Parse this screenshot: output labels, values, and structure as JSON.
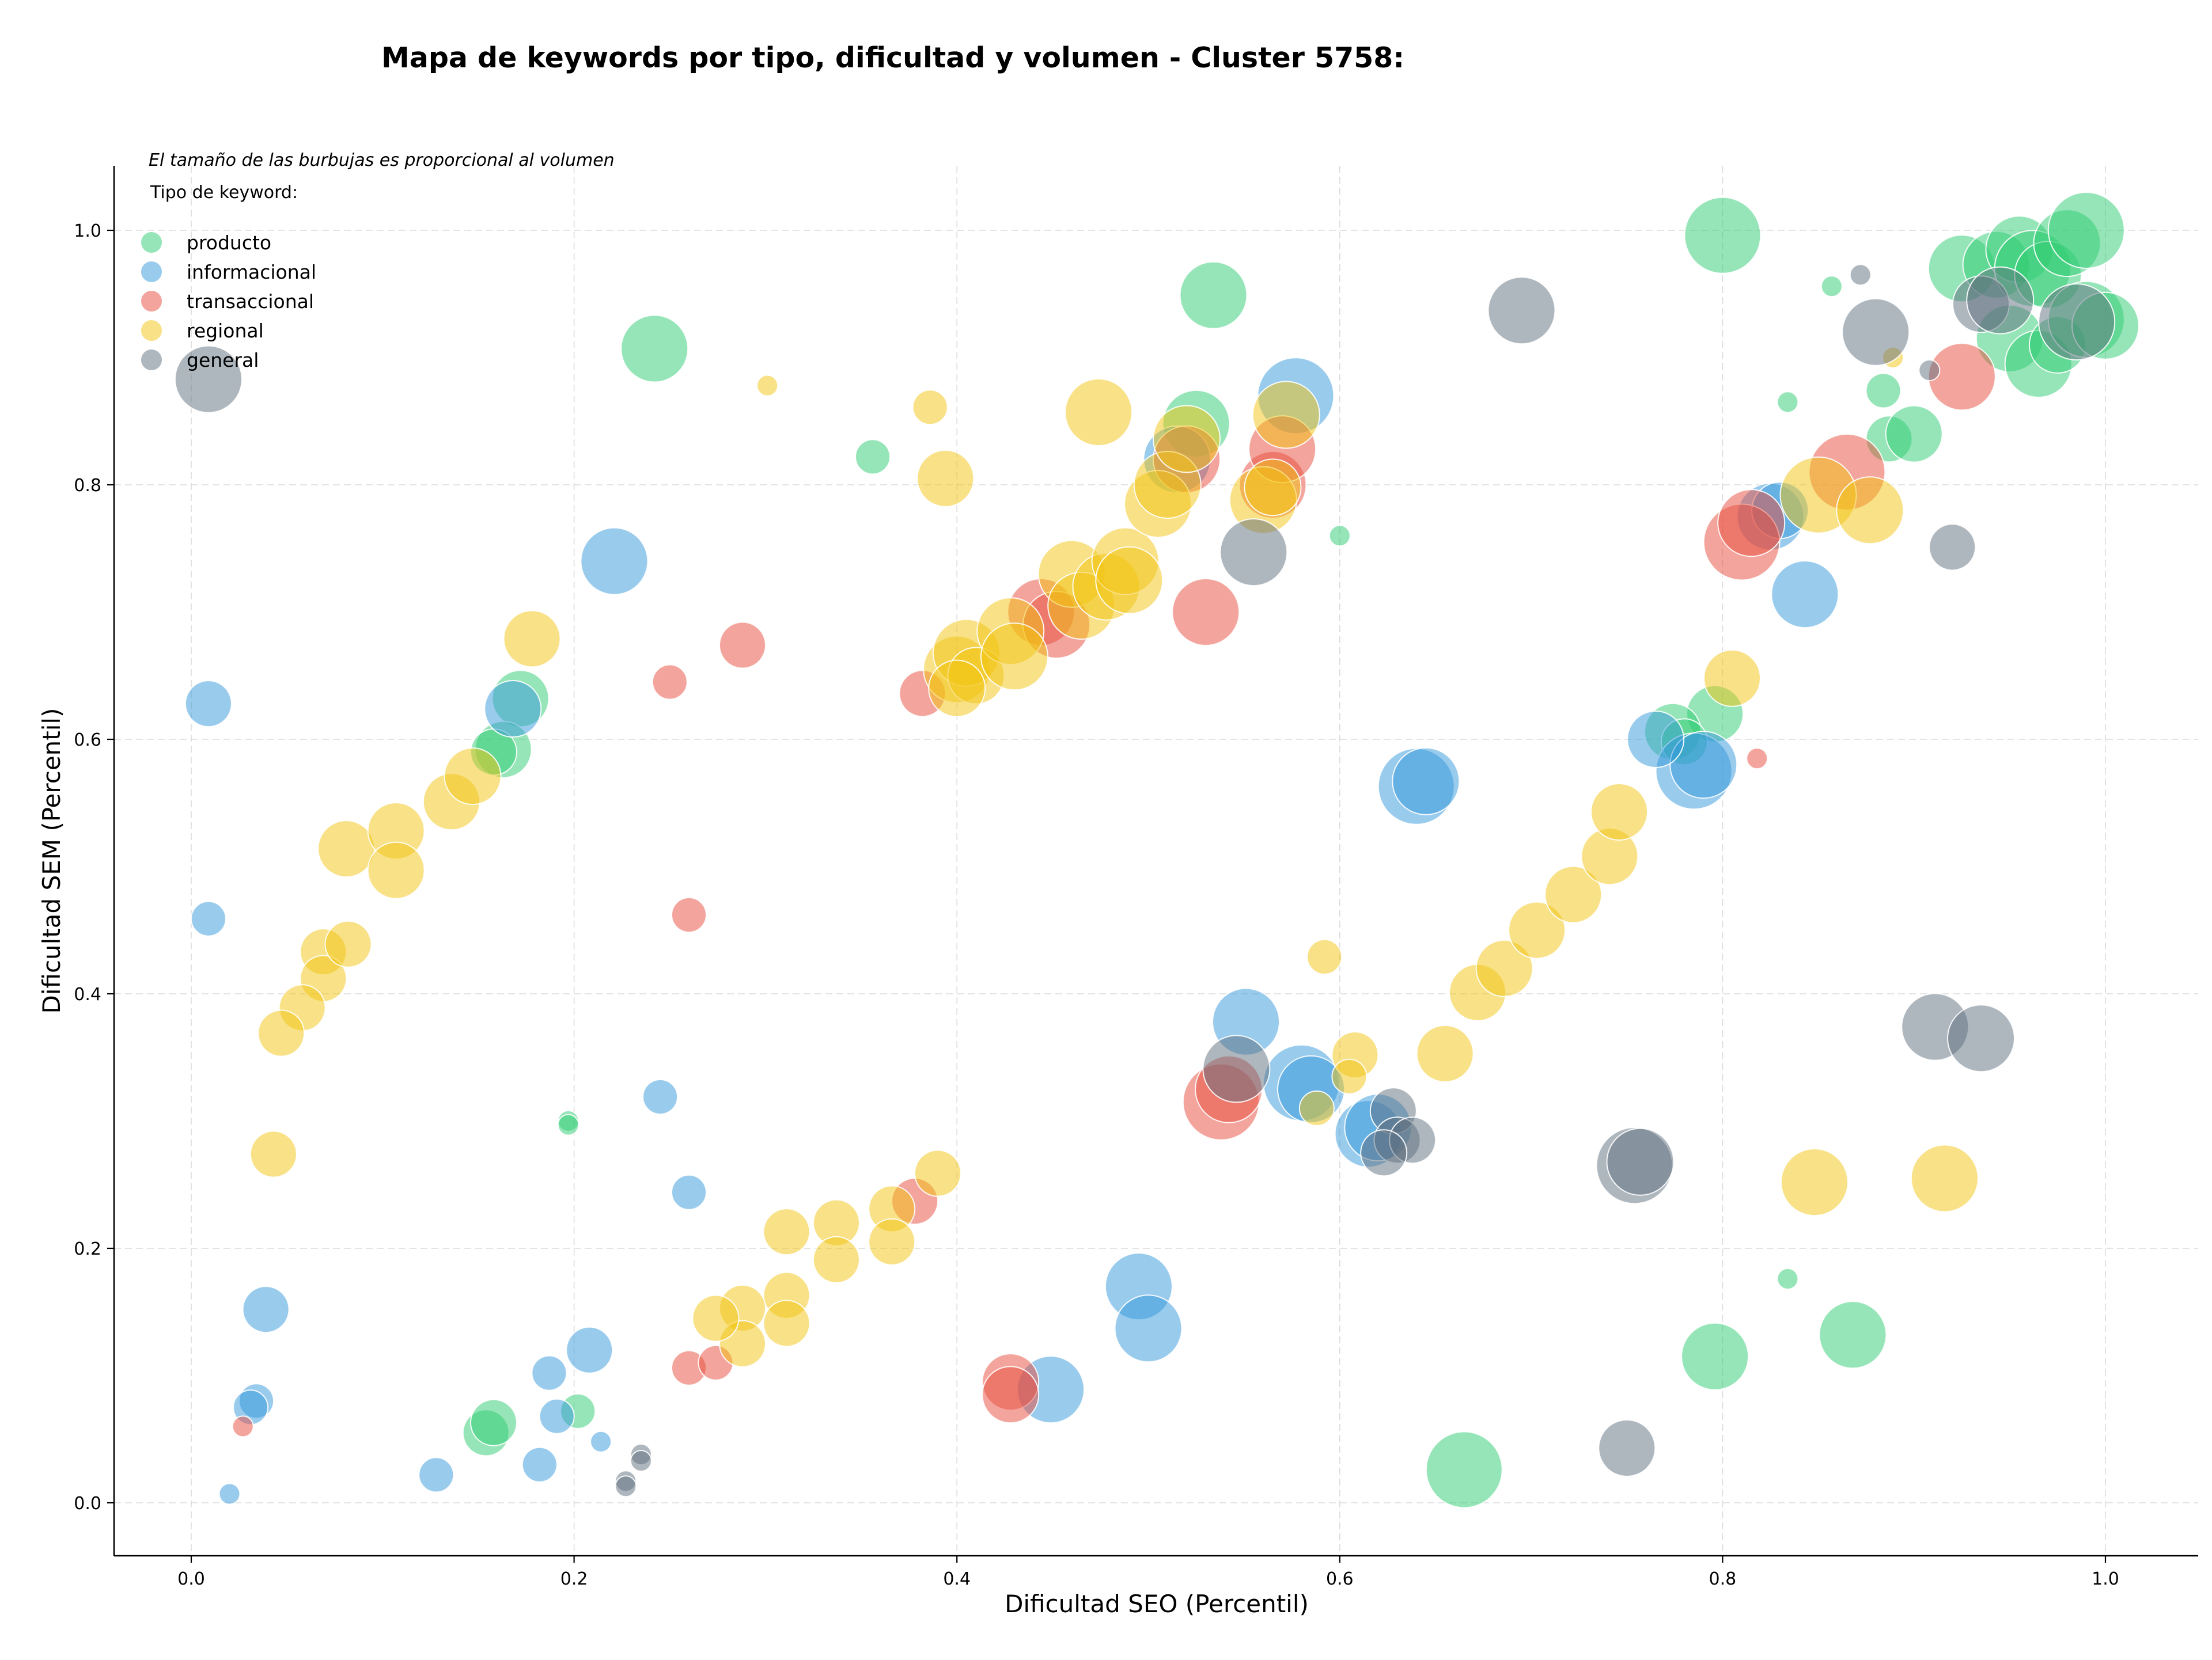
{
  "chart_data": {
    "type": "scatter",
    "title": "Mapa de keywords por tipo, dificultad y volumen - Cluster 5758:",
    "xlabel": "Dificultad SEO (Percentil)",
    "ylabel": "Dificultad SEM (Percentil)",
    "note": "El tamaño de las burbujas es proporcional al volumen",
    "legend_title": "Tipo de keyword:",
    "legend_position": "top-left",
    "grid": true,
    "xlim": [
      -0.04,
      1.05
    ],
    "ylim": [
      -0.042,
      1.05
    ],
    "x_ticks": [
      "0.0",
      "0.2",
      "0.4",
      "0.6",
      "0.8",
      "1.0"
    ],
    "y_ticks": [
      "0.0",
      "0.2",
      "0.4",
      "0.6",
      "0.8",
      "1.0"
    ],
    "series": [
      {
        "name": "producto",
        "color": "#2ecc71",
        "points": [
          [
            0.242,
            0.907,
            5
          ],
          [
            0.356,
            0.822,
            2
          ],
          [
            0.534,
            0.949,
            5
          ],
          [
            0.525,
            0.848,
            5
          ],
          [
            0.6,
            0.76,
            1
          ],
          [
            0.8,
            0.996,
            6
          ],
          [
            0.834,
            0.865,
            1
          ],
          [
            0.857,
            0.956,
            1
          ],
          [
            0.884,
            0.874,
            2
          ],
          [
            0.887,
            0.836,
            3
          ],
          [
            0.9,
            0.84,
            4
          ],
          [
            0.925,
            0.97,
            5
          ],
          [
            0.943,
            0.973,
            5
          ],
          [
            0.955,
            0.985,
            5
          ],
          [
            0.962,
            0.97,
            6
          ],
          [
            0.97,
            0.965,
            5
          ],
          [
            0.98,
            0.99,
            5
          ],
          [
            0.99,
            1.0,
            6
          ],
          [
            0.95,
            0.915,
            5
          ],
          [
            0.965,
            0.895,
            5
          ],
          [
            0.975,
            0.91,
            4
          ],
          [
            0.99,
            0.93,
            6
          ],
          [
            1.0,
            0.925,
            5
          ],
          [
            0.172,
            0.632,
            4
          ],
          [
            0.163,
            0.592,
            4
          ],
          [
            0.158,
            0.59,
            3
          ],
          [
            0.197,
            0.3,
            1
          ],
          [
            0.197,
            0.297,
            1
          ],
          [
            0.202,
            0.072,
            2
          ],
          [
            0.154,
            0.055,
            3
          ],
          [
            0.158,
            0.063,
            3
          ],
          [
            0.665,
            0.026,
            6
          ],
          [
            0.796,
            0.115,
            5
          ],
          [
            0.868,
            0.132,
            5
          ],
          [
            0.834,
            0.176,
            1
          ],
          [
            0.796,
            0.62,
            4
          ],
          [
            0.774,
            0.606,
            4
          ],
          [
            0.78,
            0.598,
            3
          ]
        ]
      },
      {
        "name": "informacional",
        "color": "#3498db",
        "points": [
          [
            0.009,
            0.628,
            3
          ],
          [
            0.009,
            0.459,
            2
          ],
          [
            0.221,
            0.74,
            5
          ],
          [
            0.168,
            0.624,
            4
          ],
          [
            0.577,
            0.87,
            6
          ],
          [
            0.515,
            0.82,
            5
          ],
          [
            0.64,
            0.563,
            6
          ],
          [
            0.645,
            0.567,
            5
          ],
          [
            0.551,
            0.378,
            5
          ],
          [
            0.58,
            0.33,
            6
          ],
          [
            0.585,
            0.325,
            5
          ],
          [
            0.615,
            0.29,
            5
          ],
          [
            0.62,
            0.295,
            5
          ],
          [
            0.825,
            0.775,
            5
          ],
          [
            0.83,
            0.78,
            4
          ],
          [
            0.843,
            0.714,
            5
          ],
          [
            0.785,
            0.575,
            6
          ],
          [
            0.79,
            0.58,
            5
          ],
          [
            0.765,
            0.6,
            4
          ],
          [
            0.245,
            0.319,
            2
          ],
          [
            0.26,
            0.244,
            2
          ],
          [
            0.039,
            0.152,
            3
          ],
          [
            0.034,
            0.08,
            2
          ],
          [
            0.031,
            0.075,
            2
          ],
          [
            0.02,
            0.007,
            1
          ],
          [
            0.128,
            0.022,
            2
          ],
          [
            0.182,
            0.03,
            2
          ],
          [
            0.187,
            0.102,
            2
          ],
          [
            0.191,
            0.068,
            2
          ],
          [
            0.208,
            0.12,
            3
          ],
          [
            0.214,
            0.048,
            1
          ],
          [
            0.495,
            0.17,
            5
          ],
          [
            0.5,
            0.137,
            5
          ],
          [
            0.449,
            0.089,
            5
          ]
        ]
      },
      {
        "name": "transaccional",
        "color": "#e74c3c",
        "points": [
          [
            0.25,
            0.645,
            2
          ],
          [
            0.288,
            0.674,
            3
          ],
          [
            0.382,
            0.636,
            3
          ],
          [
            0.444,
            0.7,
            5
          ],
          [
            0.452,
            0.69,
            5
          ],
          [
            0.53,
            0.7,
            5
          ],
          [
            0.52,
            0.82,
            5
          ],
          [
            0.565,
            0.8,
            5
          ],
          [
            0.57,
            0.828,
            5
          ],
          [
            0.81,
            0.755,
            6
          ],
          [
            0.815,
            0.77,
            5
          ],
          [
            0.865,
            0.81,
            6
          ],
          [
            0.925,
            0.885,
            5
          ],
          [
            0.818,
            0.585,
            1
          ],
          [
            0.26,
            0.462,
            2
          ],
          [
            0.538,
            0.315,
            6
          ],
          [
            0.542,
            0.325,
            5
          ],
          [
            0.378,
            0.237,
            3
          ],
          [
            0.027,
            0.06,
            1
          ],
          [
            0.26,
            0.106,
            2
          ],
          [
            0.274,
            0.11,
            2
          ],
          [
            0.428,
            0.095,
            4
          ],
          [
            0.428,
            0.085,
            4
          ]
        ]
      },
      {
        "name": "regional",
        "color": "#f1c40f",
        "points": [
          [
            0.301,
            0.878,
            1
          ],
          [
            0.386,
            0.861,
            2
          ],
          [
            0.394,
            0.805,
            4
          ],
          [
            0.474,
            0.857,
            5
          ],
          [
            0.178,
            0.679,
            4
          ],
          [
            0.081,
            0.514,
            4
          ],
          [
            0.107,
            0.528,
            4
          ],
          [
            0.107,
            0.497,
            4
          ],
          [
            0.136,
            0.551,
            4
          ],
          [
            0.147,
            0.571,
            4
          ],
          [
            0.069,
            0.433,
            3
          ],
          [
            0.069,
            0.412,
            3
          ],
          [
            0.082,
            0.439,
            3
          ],
          [
            0.058,
            0.389,
            3
          ],
          [
            0.047,
            0.369,
            3
          ],
          [
            0.043,
            0.274,
            3
          ],
          [
            0.4,
            0.655,
            5
          ],
          [
            0.405,
            0.668,
            5
          ],
          [
            0.41,
            0.65,
            4
          ],
          [
            0.4,
            0.64,
            4
          ],
          [
            0.428,
            0.685,
            5
          ],
          [
            0.43,
            0.665,
            5
          ],
          [
            0.46,
            0.73,
            5
          ],
          [
            0.465,
            0.705,
            5
          ],
          [
            0.478,
            0.72,
            5
          ],
          [
            0.488,
            0.74,
            5
          ],
          [
            0.49,
            0.725,
            5
          ],
          [
            0.505,
            0.785,
            5
          ],
          [
            0.51,
            0.8,
            5
          ],
          [
            0.52,
            0.836,
            5
          ],
          [
            0.56,
            0.788,
            5
          ],
          [
            0.565,
            0.798,
            4
          ],
          [
            0.572,
            0.855,
            5
          ],
          [
            0.592,
            0.429,
            2
          ],
          [
            0.608,
            0.352,
            3
          ],
          [
            0.605,
            0.335,
            2
          ],
          [
            0.588,
            0.31,
            2
          ],
          [
            0.655,
            0.353,
            4
          ],
          [
            0.672,
            0.401,
            4
          ],
          [
            0.686,
            0.42,
            4
          ],
          [
            0.703,
            0.45,
            4
          ],
          [
            0.722,
            0.478,
            4
          ],
          [
            0.741,
            0.508,
            4
          ],
          [
            0.746,
            0.543,
            4
          ],
          [
            0.805,
            0.648,
            4
          ],
          [
            0.85,
            0.792,
            6
          ],
          [
            0.877,
            0.78,
            5
          ],
          [
            0.848,
            0.252,
            5
          ],
          [
            0.916,
            0.255,
            5
          ],
          [
            0.889,
            0.9,
            1
          ],
          [
            0.39,
            0.259,
            3
          ],
          [
            0.366,
            0.231,
            3
          ],
          [
            0.366,
            0.205,
            3
          ],
          [
            0.337,
            0.22,
            3
          ],
          [
            0.337,
            0.191,
            3
          ],
          [
            0.311,
            0.213,
            3
          ],
          [
            0.311,
            0.163,
            3
          ],
          [
            0.311,
            0.141,
            3
          ],
          [
            0.288,
            0.153,
            3
          ],
          [
            0.288,
            0.125,
            3
          ],
          [
            0.274,
            0.145,
            3
          ]
        ]
      },
      {
        "name": "general",
        "color": "#5d6d7e",
        "points": [
          [
            0.009,
            0.883,
            5
          ],
          [
            0.695,
            0.937,
            5
          ],
          [
            0.555,
            0.747,
            5
          ],
          [
            0.872,
            0.965,
            1
          ],
          [
            0.88,
            0.92,
            5
          ],
          [
            0.908,
            0.89,
            1
          ],
          [
            0.935,
            0.942,
            4
          ],
          [
            0.945,
            0.945,
            5
          ],
          [
            0.985,
            0.928,
            6
          ],
          [
            0.92,
            0.751,
            3
          ],
          [
            0.546,
            0.341,
            5
          ],
          [
            0.628,
            0.308,
            3
          ],
          [
            0.63,
            0.285,
            3
          ],
          [
            0.638,
            0.285,
            3
          ],
          [
            0.623,
            0.275,
            3
          ],
          [
            0.754,
            0.265,
            6
          ],
          [
            0.757,
            0.268,
            5
          ],
          [
            0.911,
            0.374,
            5
          ],
          [
            0.935,
            0.365,
            5
          ],
          [
            0.75,
            0.043,
            4
          ],
          [
            0.235,
            0.038,
            1
          ],
          [
            0.235,
            0.033,
            1
          ],
          [
            0.227,
            0.017,
            1
          ],
          [
            0.227,
            0.013,
            1
          ]
        ]
      }
    ]
  }
}
